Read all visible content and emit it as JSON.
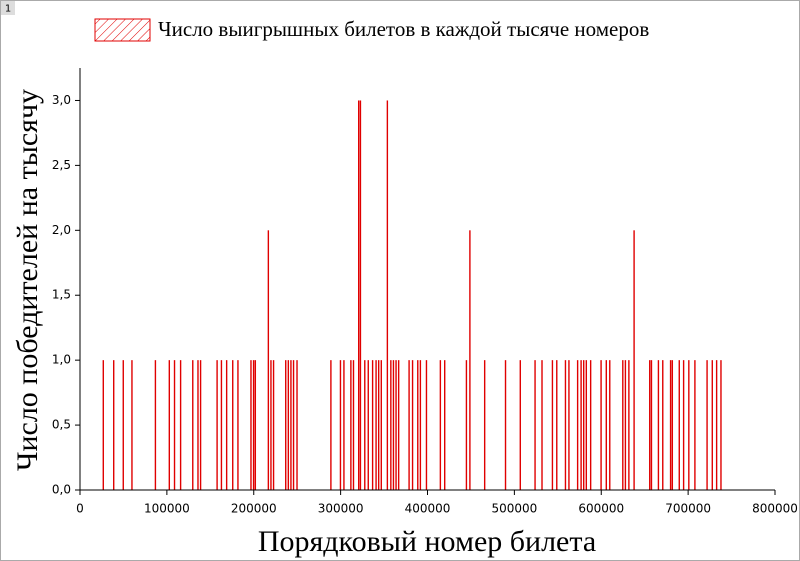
{
  "panel_label": "1",
  "chart_data": {
    "type": "bar",
    "x_label": "Порядковый номер билета",
    "y_label": "Число победителей на тысячу",
    "series": [
      {
        "name": "Число выигрышных билетов в каждой тысяче номеров",
        "color": "#e00000",
        "x": [
          26000,
          38000,
          49000,
          59000,
          86000,
          102000,
          108000,
          115000,
          129000,
          135000,
          138000,
          157000,
          162000,
          168000,
          175000,
          181000,
          196000,
          199000,
          201000,
          216000,
          219000,
          222000,
          236000,
          239000,
          242000,
          245000,
          249000,
          288000,
          299000,
          303000,
          311000,
          314000,
          320000,
          322000,
          327000,
          331000,
          336000,
          340000,
          343000,
          346000,
          353000,
          357000,
          360000,
          363000,
          366000,
          378000,
          382000,
          388000,
          391000,
          398000,
          414000,
          419000,
          444000,
          448000,
          465000,
          489000,
          506000,
          523000,
          531000,
          543000,
          548000,
          558000,
          562000,
          572000,
          576000,
          579000,
          582000,
          587000,
          599000,
          605000,
          609000,
          624000,
          627000,
          631000,
          637000,
          655000,
          657000,
          665000,
          670000,
          679000,
          681000,
          689000,
          694000,
          700000,
          707000,
          721000,
          727000,
          732000,
          737000
        ],
        "values": [
          1,
          1,
          1,
          1,
          1,
          1,
          1,
          1,
          1,
          1,
          1,
          1,
          1,
          1,
          1,
          1,
          1,
          1,
          1,
          2,
          1,
          1,
          1,
          1,
          1,
          1,
          1,
          1,
          1,
          1,
          1,
          1,
          3,
          3,
          1,
          1,
          1,
          1,
          1,
          1,
          3,
          1,
          1,
          1,
          1,
          1,
          1,
          1,
          1,
          1,
          1,
          1,
          1,
          2,
          1,
          1,
          1,
          1,
          1,
          1,
          1,
          1,
          1,
          1,
          1,
          1,
          1,
          1,
          1,
          1,
          1,
          1,
          1,
          1,
          2,
          1,
          1,
          1,
          1,
          1,
          1,
          1,
          1,
          1,
          1,
          1,
          1,
          1,
          1
        ]
      }
    ],
    "xlim": [
      0,
      800000
    ],
    "xticks": [
      0,
      100000,
      200000,
      300000,
      400000,
      500000,
      600000,
      700000,
      800000
    ],
    "ylim": [
      0,
      3.25
    ],
    "yticks": [
      {
        "value": 0,
        "label": "0,0"
      },
      {
        "value": 0.5,
        "label": "0,5"
      },
      {
        "value": 1,
        "label": "1,0"
      },
      {
        "value": 1.5,
        "label": "1,5"
      },
      {
        "value": 2,
        "label": "2,0"
      },
      {
        "value": 2.5,
        "label": "2,5"
      },
      {
        "value": 3,
        "label": "3,0"
      }
    ],
    "legend": "top"
  }
}
